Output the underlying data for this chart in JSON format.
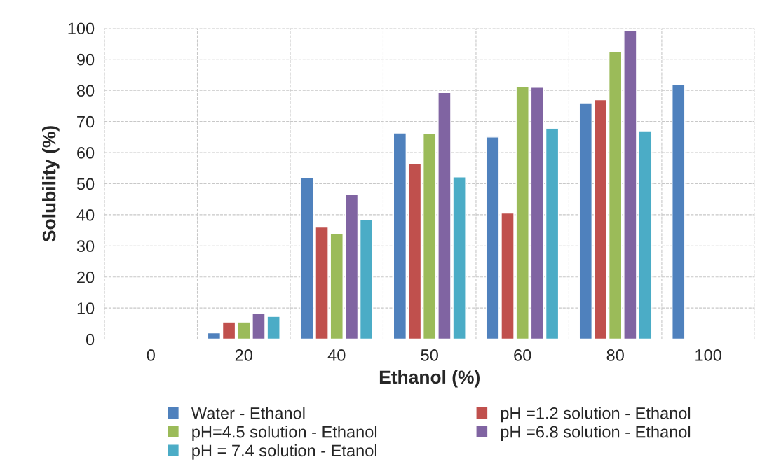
{
  "chart_data": {
    "type": "bar",
    "xlabel": "Ethanol (%)",
    "ylabel": "Solubility (%)",
    "categories": [
      "0",
      "20",
      "40",
      "50",
      "60",
      "80",
      "100"
    ],
    "series": [
      {
        "name": "Water - Ethanol",
        "color": "#4f81bd",
        "values": [
          null,
          2,
          52,
          66.3,
          65,
          76,
          82
        ]
      },
      {
        "name": "pH =1.2 solution - Ethanol",
        "color": "#c0504d",
        "values": [
          null,
          5.5,
          36,
          56.5,
          40.5,
          77,
          null
        ]
      },
      {
        "name": "pH=4.5 solution - Ethanol",
        "color": "#9bbb59",
        "values": [
          null,
          5.5,
          34,
          66,
          81.3,
          92.5,
          null
        ]
      },
      {
        "name": "pH =6.8 solution - Ethanol",
        "color": "#8064a2",
        "values": [
          null,
          8.3,
          46.5,
          79.3,
          81,
          99.2,
          null
        ]
      },
      {
        "name": "pH = 7.4 solution - Etanol",
        "color": "#4bacc6",
        "values": [
          null,
          7.3,
          38.5,
          52.2,
          67.7,
          67,
          null
        ]
      }
    ],
    "ylim": [
      0,
      100
    ],
    "yticks": [
      0,
      10,
      20,
      30,
      40,
      50,
      60,
      70,
      80,
      90,
      100
    ],
    "grid": true,
    "legend": "bottom"
  }
}
